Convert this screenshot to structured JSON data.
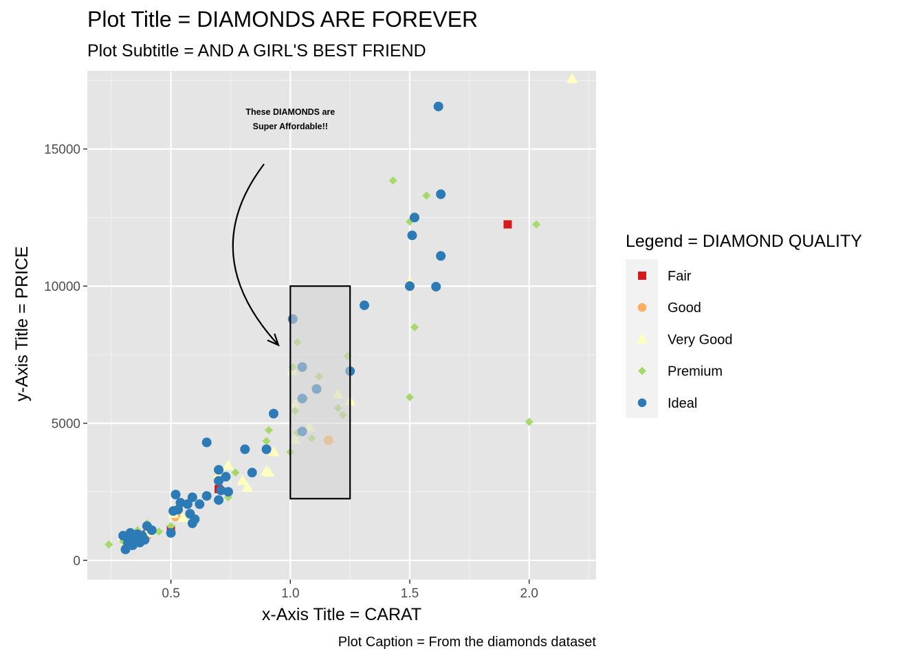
{
  "chart_data": {
    "type": "scatter",
    "title": "Plot Title = DIAMONDS ARE FOREVER",
    "subtitle": "Plot Subtitle = AND A GIRL'S BEST FRIEND",
    "xlabel": "x-Axis Title = CARAT",
    "ylabel": "y-Axis Title = PRICE",
    "caption": "Plot Caption = From the diamonds dataset",
    "xlim": [
      0.15,
      2.28
    ],
    "ylim": [
      -700,
      17850
    ],
    "x_ticks": [
      0.5,
      1.0,
      1.5,
      2.0
    ],
    "x_tick_labels": [
      "0.5",
      "1.0",
      "1.5",
      "2.0"
    ],
    "y_ticks": [
      0,
      5000,
      10000,
      15000
    ],
    "y_tick_labels": [
      "0",
      "5000",
      "10000",
      "15000"
    ],
    "grid": true,
    "legend": {
      "title": "Legend = DIAMOND QUALITY",
      "position": "right",
      "entries": [
        {
          "label": "Fair",
          "shape": "square",
          "color": "#d7191c"
        },
        {
          "label": "Good",
          "shape": "circle",
          "color": "#fdae61"
        },
        {
          "label": "Very Good",
          "shape": "triangle",
          "color": "#ffffbf"
        },
        {
          "label": "Premium",
          "shape": "diamond",
          "color": "#a6d96a"
        },
        {
          "label": "Ideal",
          "shape": "circle",
          "color": "#2c7bb6"
        }
      ]
    },
    "annotation": {
      "text_lines": [
        "These DIAMONDS are",
        "Super Affordable!!"
      ],
      "text_x": 1.0,
      "text_y": 16000,
      "arrow_from": [
        0.89,
        14450
      ],
      "arrow_to": [
        0.95,
        7850
      ]
    },
    "highlight_rect": {
      "x": [
        1.0,
        1.25
      ],
      "y": [
        2250,
        10000
      ]
    },
    "series": [
      {
        "name": "Fair",
        "points": [
          [
            1.91,
            12250
          ],
          [
            0.5,
            1120
          ],
          [
            0.4,
            950
          ],
          [
            0.7,
            2600
          ],
          [
            0.32,
            700
          ]
        ]
      },
      {
        "name": "Good",
        "points": [
          [
            1.16,
            4380
          ],
          [
            0.36,
            780
          ],
          [
            0.4,
            900
          ],
          [
            0.7,
            3050
          ],
          [
            0.31,
            650
          ],
          [
            0.52,
            1600
          ]
        ]
      },
      {
        "name": "Very Good",
        "points": [
          [
            2.18,
            17550
          ],
          [
            1.5,
            10150
          ],
          [
            0.93,
            3950
          ],
          [
            0.9,
            3250
          ],
          [
            0.82,
            2650
          ],
          [
            0.74,
            3450
          ],
          [
            0.91,
            3200
          ],
          [
            0.52,
            1850
          ],
          [
            0.51,
            1700
          ],
          [
            0.59,
            1450
          ],
          [
            0.31,
            700
          ],
          [
            0.33,
            800
          ],
          [
            0.36,
            650
          ],
          [
            0.4,
            1000
          ],
          [
            0.3,
            850
          ],
          [
            1.01,
            6900
          ],
          [
            1.02,
            5700
          ],
          [
            1.08,
            4850
          ],
          [
            1.2,
            6050
          ],
          [
            1.25,
            5800
          ],
          [
            1.02,
            4400
          ],
          [
            0.8,
            2900
          ],
          [
            0.7,
            3150
          ],
          [
            0.55,
            1550
          ]
        ]
      },
      {
        "name": "Premium",
        "points": [
          [
            1.43,
            13850
          ],
          [
            1.57,
            13300
          ],
          [
            1.5,
            12350
          ],
          [
            2.03,
            12250
          ],
          [
            1.52,
            8500
          ],
          [
            1.5,
            5950
          ],
          [
            2.0,
            5050
          ],
          [
            1.03,
            7950
          ],
          [
            1.24,
            7450
          ],
          [
            1.01,
            7050
          ],
          [
            1.12,
            6700
          ],
          [
            1.06,
            5900
          ],
          [
            1.02,
            5450
          ],
          [
            1.2,
            5550
          ],
          [
            1.22,
            5300
          ],
          [
            0.91,
            4750
          ],
          [
            0.9,
            4350
          ],
          [
            1.0,
            3950
          ],
          [
            1.09,
            4450
          ],
          [
            1.03,
            4650
          ],
          [
            0.77,
            3200
          ],
          [
            0.74,
            2300
          ],
          [
            0.6,
            1400
          ],
          [
            0.5,
            1250
          ],
          [
            0.4,
            1350
          ],
          [
            0.36,
            1100
          ],
          [
            0.24,
            580
          ],
          [
            0.3,
            700
          ],
          [
            0.45,
            1050
          ],
          [
            0.33,
            900
          ]
        ]
      },
      {
        "name": "Ideal",
        "points": [
          [
            1.62,
            16550
          ],
          [
            1.63,
            13350
          ],
          [
            1.52,
            12500
          ],
          [
            1.51,
            11850
          ],
          [
            1.63,
            11100
          ],
          [
            1.5,
            10000
          ],
          [
            1.61,
            9980
          ],
          [
            1.31,
            9300
          ],
          [
            1.01,
            8800
          ],
          [
            1.05,
            7050
          ],
          [
            1.25,
            6900
          ],
          [
            1.11,
            6250
          ],
          [
            1.05,
            5900
          ],
          [
            1.05,
            4700
          ],
          [
            0.93,
            5350
          ],
          [
            0.65,
            4300
          ],
          [
            0.81,
            4050
          ],
          [
            0.9,
            4050
          ],
          [
            0.84,
            3200
          ],
          [
            0.7,
            3300
          ],
          [
            0.7,
            2900
          ],
          [
            0.71,
            2550
          ],
          [
            0.73,
            3050
          ],
          [
            0.74,
            2500
          ],
          [
            0.7,
            2200
          ],
          [
            0.65,
            2350
          ],
          [
            0.62,
            2050
          ],
          [
            0.59,
            2300
          ],
          [
            0.52,
            2400
          ],
          [
            0.54,
            2100
          ],
          [
            0.57,
            2050
          ],
          [
            0.53,
            1850
          ],
          [
            0.51,
            1800
          ],
          [
            0.58,
            1700
          ],
          [
            0.6,
            1500
          ],
          [
            0.59,
            1350
          ],
          [
            0.5,
            1000
          ],
          [
            0.42,
            1100
          ],
          [
            0.4,
            1250
          ],
          [
            0.38,
            900
          ],
          [
            0.37,
            650
          ],
          [
            0.35,
            800
          ],
          [
            0.34,
            550
          ],
          [
            0.33,
            1000
          ],
          [
            0.32,
            900
          ],
          [
            0.31,
            400
          ],
          [
            0.3,
            900
          ],
          [
            0.32,
            650
          ],
          [
            0.36,
            950
          ],
          [
            0.39,
            750
          ]
        ]
      }
    ]
  }
}
